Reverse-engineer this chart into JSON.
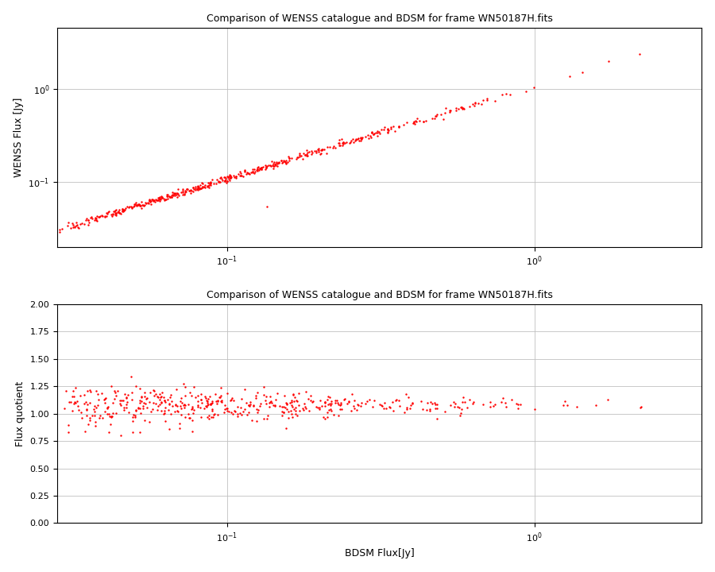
{
  "title": "Comparison of WENSS catalogue and BDSM for frame WN50187H.fits",
  "xlabel": "BDSM Flux[Jy]",
  "ylabel1": "WENSS Flux [Jy]",
  "ylabel2": "Flux quotient",
  "plot1_xlim": [
    0.028,
    3.5
  ],
  "plot1_ylim": [
    0.02,
    4.5
  ],
  "plot2_xlim": [
    0.028,
    3.5
  ],
  "plot2_ylim": [
    0.0,
    2.0
  ],
  "dot_color": "#ff0000",
  "dot_size": 3,
  "background_color": "#ffffff",
  "grid_color": "#c0c0c0",
  "title_fontsize": 9,
  "label_fontsize": 9,
  "tick_fontsize": 8,
  "seed": 42,
  "n_main": 500
}
